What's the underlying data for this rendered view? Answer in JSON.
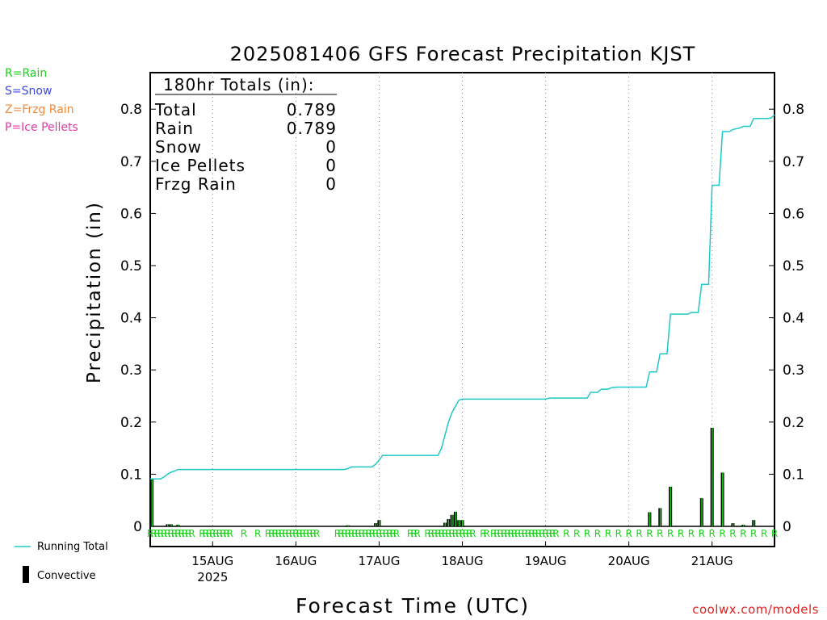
{
  "chart_data": {
    "type": "bar",
    "title": "2025081406 GFS Forecast Precipitation KJST",
    "xlabel": "Forecast Time (UTC)",
    "ylabel": "Precipitation (in)",
    "ylim": [
      0,
      0.87
    ],
    "y_ticks": [
      "0",
      "0.1",
      "0.2",
      "0.3",
      "0.4",
      "0.5",
      "0.6",
      "0.7",
      "0.8"
    ],
    "x_range_hours": [
      0,
      180
    ],
    "x_ticks": [
      {
        "hour": 18,
        "label": "15AUG",
        "sublabel": "2025"
      },
      {
        "hour": 42,
        "label": "16AUG",
        "sublabel": ""
      },
      {
        "hour": 66,
        "label": "17AUG",
        "sublabel": ""
      },
      {
        "hour": 90,
        "label": "18AUG",
        "sublabel": ""
      },
      {
        "hour": 114,
        "label": "19AUG",
        "sublabel": ""
      },
      {
        "hour": 138,
        "label": "20AUG",
        "sublabel": ""
      },
      {
        "hour": 162,
        "label": "21AUG",
        "sublabel": ""
      }
    ],
    "grid": "vertical dotted at day boundaries",
    "totals_box": {
      "header": "180hr Totals (in):",
      "rows": [
        {
          "label": "Total",
          "value": "0.789"
        },
        {
          "label": "Rain",
          "value": "0.789"
        },
        {
          "label": "Snow",
          "value": "0"
        },
        {
          "label": "Ice Pellets",
          "value": "0"
        },
        {
          "label": "Frzg Rain",
          "value": "0"
        }
      ]
    },
    "series": [
      {
        "name": "Running Total",
        "kind": "line",
        "color": "#1fc8c8",
        "points": [
          [
            0,
            0.091
          ],
          [
            3,
            0.091
          ],
          [
            4,
            0.095
          ],
          [
            5,
            0.1
          ],
          [
            6,
            0.104
          ],
          [
            7,
            0.106
          ],
          [
            8,
            0.109
          ],
          [
            40,
            0.109
          ],
          [
            56,
            0.109
          ],
          [
            57,
            0.111
          ],
          [
            58,
            0.114
          ],
          [
            64,
            0.114
          ],
          [
            65,
            0.119
          ],
          [
            66,
            0.127
          ],
          [
            67,
            0.136
          ],
          [
            83,
            0.136
          ],
          [
            84,
            0.15
          ],
          [
            85,
            0.175
          ],
          [
            86,
            0.2
          ],
          [
            87,
            0.218
          ],
          [
            88,
            0.23
          ],
          [
            89,
            0.242
          ],
          [
            90,
            0.244
          ],
          [
            114,
            0.244
          ],
          [
            115,
            0.246
          ],
          [
            126,
            0.246
          ],
          [
            127,
            0.257
          ],
          [
            129,
            0.257
          ],
          [
            130,
            0.263
          ],
          [
            132,
            0.263
          ],
          [
            133,
            0.266
          ],
          [
            135,
            0.267
          ],
          [
            137,
            0.267
          ],
          [
            143,
            0.267
          ],
          [
            144,
            0.296
          ],
          [
            146,
            0.296
          ],
          [
            147,
            0.331
          ],
          [
            149,
            0.331
          ],
          [
            150,
            0.407
          ],
          [
            155,
            0.407
          ],
          [
            156,
            0.41
          ],
          [
            158,
            0.41
          ],
          [
            159,
            0.464
          ],
          [
            161,
            0.464
          ],
          [
            162,
            0.654
          ],
          [
            164,
            0.654
          ],
          [
            165,
            0.757
          ],
          [
            167,
            0.757
          ],
          [
            168,
            0.761
          ],
          [
            170,
            0.764
          ],
          [
            171,
            0.767
          ],
          [
            173,
            0.767
          ],
          [
            174,
            0.782
          ],
          [
            178,
            0.782
          ],
          [
            179,
            0.783
          ],
          [
            180,
            0.789
          ]
        ]
      },
      {
        "name": "Convective",
        "kind": "bar",
        "color": "#000000",
        "bars": [
          [
            0.5,
            0.091
          ],
          [
            5,
            0.004
          ],
          [
            6,
            0.004
          ],
          [
            8,
            0.003
          ],
          [
            57,
            0.002
          ],
          [
            65,
            0.006
          ],
          [
            66,
            0.012
          ],
          [
            85,
            0.007
          ],
          [
            86,
            0.014
          ],
          [
            87,
            0.022
          ],
          [
            88,
            0.028
          ],
          [
            89,
            0.012
          ],
          [
            90,
            0.012
          ],
          [
            144,
            0.027
          ],
          [
            147,
            0.035
          ],
          [
            150,
            0.076
          ],
          [
            159,
            0.054
          ],
          [
            162,
            0.189
          ],
          [
            165,
            0.103
          ],
          [
            168,
            0.006
          ],
          [
            171,
            0.003
          ],
          [
            174,
            0.012
          ]
        ]
      }
    ],
    "ptype_rain_hours": [
      0,
      1,
      2,
      3,
      4,
      5,
      6,
      7,
      8,
      9,
      10,
      11,
      12,
      15,
      16,
      17,
      18,
      19,
      20,
      21,
      22,
      23,
      27,
      31,
      34,
      35,
      36,
      37,
      38,
      39,
      40,
      41,
      42,
      43,
      44,
      45,
      46,
      47,
      48,
      54,
      55,
      56,
      57,
      58,
      59,
      60,
      61,
      62,
      63,
      64,
      65,
      66,
      67,
      68,
      69,
      70,
      71,
      75,
      76,
      77,
      80,
      81,
      82,
      83,
      84,
      85,
      86,
      87,
      88,
      89,
      90,
      91,
      92,
      93,
      96,
      97,
      99,
      100,
      101,
      102,
      103,
      104,
      105,
      106,
      107,
      108,
      109,
      110,
      111,
      112,
      113,
      114,
      115,
      116,
      117,
      120,
      123,
      126,
      129,
      132,
      135,
      138,
      141,
      144,
      147,
      150,
      153,
      156,
      159,
      162,
      165,
      168,
      171,
      174,
      177,
      180
    ],
    "ptype_symbol": "R"
  },
  "legend_top_left": {
    "rain": "R=Rain",
    "snow": "S=Snow",
    "frzg_rain": "Z=Frzg Rain",
    "ice_pellets": "P=Ice Pellets"
  },
  "legend_bottom_left": {
    "running_total": "Running Total",
    "convective": "Convective"
  },
  "credit": "coolwx.com/models"
}
